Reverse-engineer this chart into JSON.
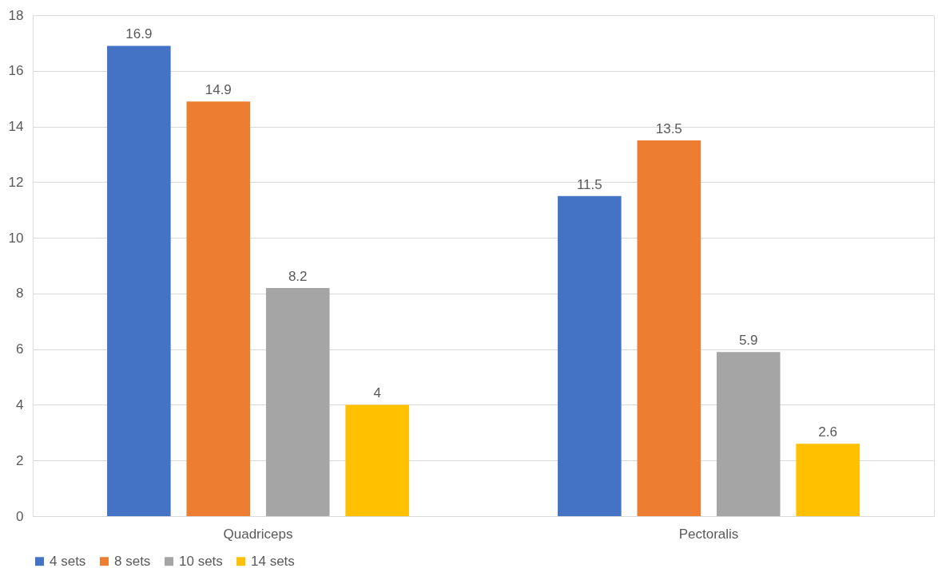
{
  "chart_data": {
    "type": "bar",
    "categories": [
      "Quadriceps",
      "Pectoralis"
    ],
    "series": [
      {
        "name": "4 sets",
        "color": "#4472c4",
        "values": [
          16.9,
          11.5
        ]
      },
      {
        "name": "8 sets",
        "color": "#ed7d31",
        "values": [
          14.9,
          13.5
        ]
      },
      {
        "name": "10 sets",
        "color": "#a5a5a5",
        "values": [
          8.2,
          5.9
        ]
      },
      {
        "name": "14 sets",
        "color": "#ffc000",
        "values": [
          4,
          2.6
        ]
      }
    ],
    "ylim": [
      0,
      18
    ],
    "yticks": [
      0,
      2,
      4,
      6,
      8,
      10,
      12,
      14,
      16,
      18
    ],
    "grid": "y",
    "legend": "bottom",
    "data_labels": true
  }
}
